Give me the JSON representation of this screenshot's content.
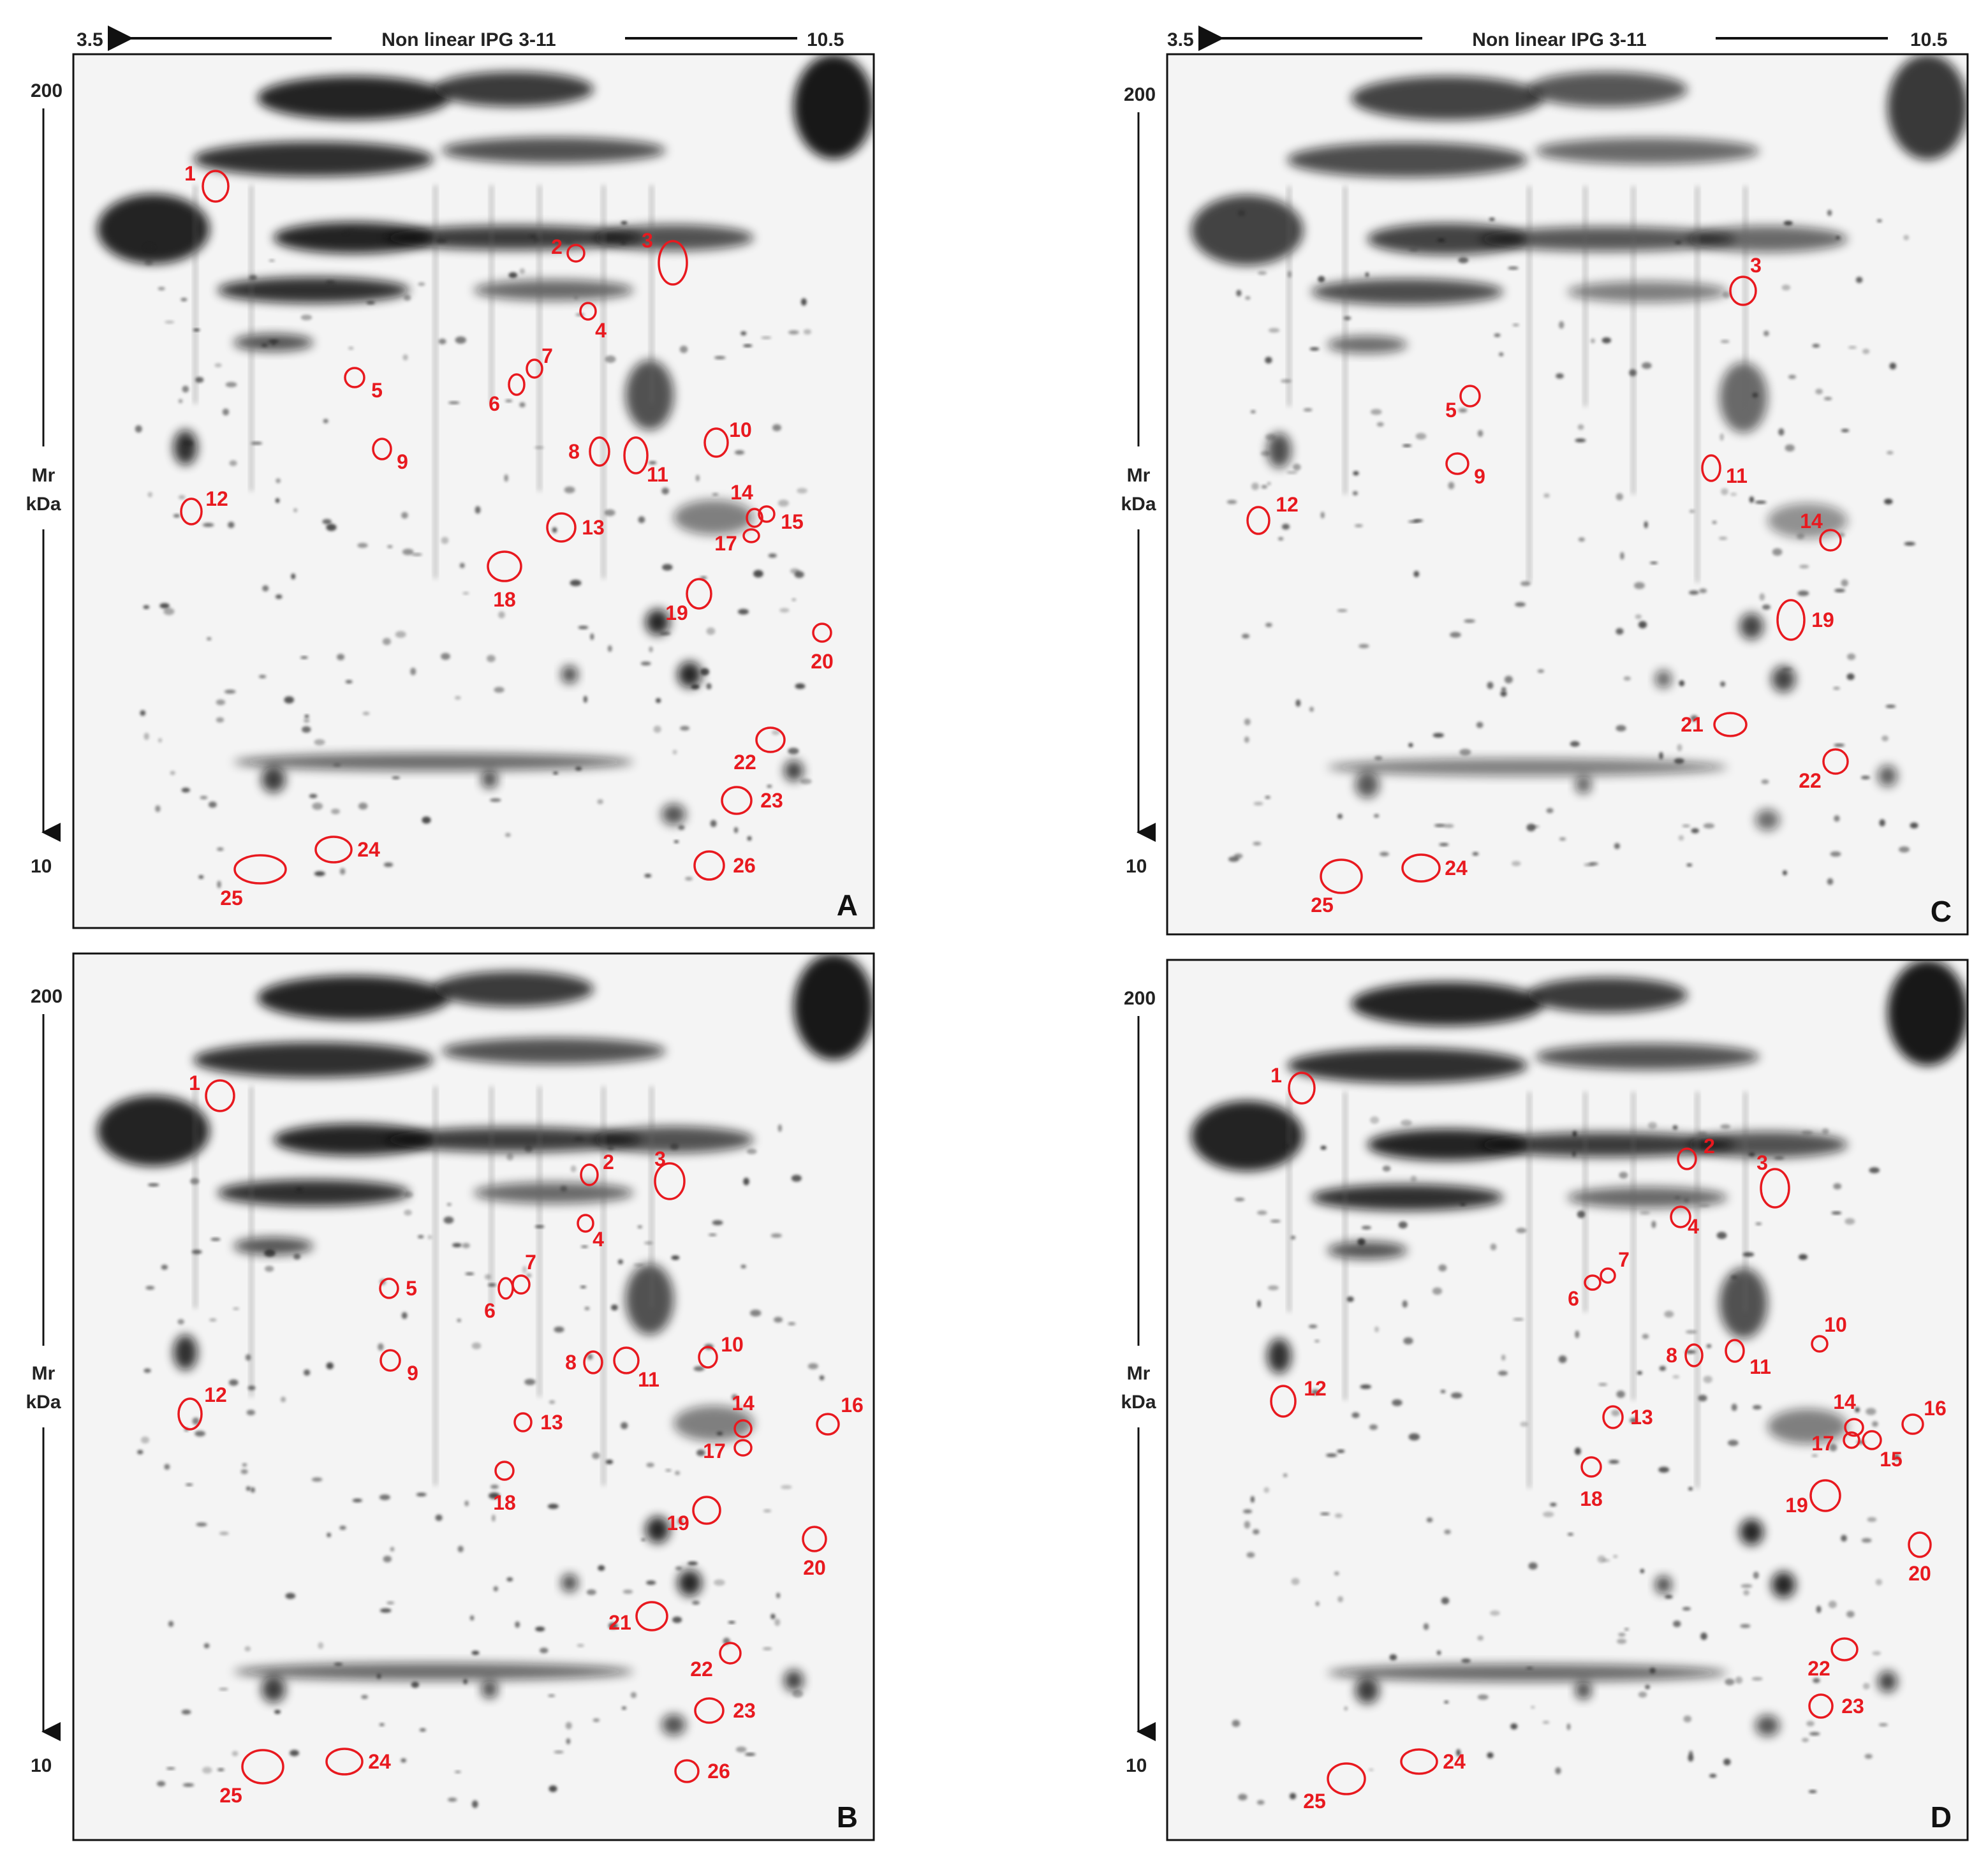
{
  "axes": {
    "ph_low": "3.5",
    "ph_high": "10.5",
    "gradient_label": "Non linear IPG 3-11",
    "mw_top": "200",
    "mw_bottom": "10",
    "mw_label_line1": "Mr",
    "mw_label_line2": "kDa"
  },
  "colors": {
    "spot_marker": "#e8191f",
    "frame": "#111111",
    "gel_dark": "#111111"
  },
  "panels": [
    {
      "id": "A",
      "spots": [
        {
          "n": "1"
        },
        {
          "n": "2"
        },
        {
          "n": "3"
        },
        {
          "n": "4"
        },
        {
          "n": "5"
        },
        {
          "n": "6"
        },
        {
          "n": "7"
        },
        {
          "n": "8"
        },
        {
          "n": "9"
        },
        {
          "n": "10"
        },
        {
          "n": "11"
        },
        {
          "n": "12"
        },
        {
          "n": "13"
        },
        {
          "n": "14"
        },
        {
          "n": "15"
        },
        {
          "n": "17"
        },
        {
          "n": "18"
        },
        {
          "n": "19"
        },
        {
          "n": "20"
        },
        {
          "n": "22"
        },
        {
          "n": "23"
        },
        {
          "n": "24"
        },
        {
          "n": "25"
        },
        {
          "n": "26"
        }
      ]
    },
    {
      "id": "B",
      "spots": [
        {
          "n": "1"
        },
        {
          "n": "2"
        },
        {
          "n": "3"
        },
        {
          "n": "4"
        },
        {
          "n": "5"
        },
        {
          "n": "6"
        },
        {
          "n": "7"
        },
        {
          "n": "8"
        },
        {
          "n": "9"
        },
        {
          "n": "10"
        },
        {
          "n": "11"
        },
        {
          "n": "12"
        },
        {
          "n": "13"
        },
        {
          "n": "14"
        },
        {
          "n": "16"
        },
        {
          "n": "17"
        },
        {
          "n": "18"
        },
        {
          "n": "19"
        },
        {
          "n": "20"
        },
        {
          "n": "21"
        },
        {
          "n": "22"
        },
        {
          "n": "23"
        },
        {
          "n": "24"
        },
        {
          "n": "25"
        },
        {
          "n": "26"
        }
      ]
    },
    {
      "id": "C",
      "spots": [
        {
          "n": "3"
        },
        {
          "n": "5"
        },
        {
          "n": "9"
        },
        {
          "n": "11"
        },
        {
          "n": "12"
        },
        {
          "n": "14"
        },
        {
          "n": "19"
        },
        {
          "n": "21"
        },
        {
          "n": "22"
        },
        {
          "n": "24"
        },
        {
          "n": "25"
        }
      ]
    },
    {
      "id": "D",
      "spots": [
        {
          "n": "1"
        },
        {
          "n": "2"
        },
        {
          "n": "3"
        },
        {
          "n": "4"
        },
        {
          "n": "6"
        },
        {
          "n": "7"
        },
        {
          "n": "8"
        },
        {
          "n": "10"
        },
        {
          "n": "11"
        },
        {
          "n": "12"
        },
        {
          "n": "13"
        },
        {
          "n": "14"
        },
        {
          "n": "15"
        },
        {
          "n": "16"
        },
        {
          "n": "17"
        },
        {
          "n": "18"
        },
        {
          "n": "19"
        },
        {
          "n": "20"
        },
        {
          "n": "22"
        },
        {
          "n": "23"
        },
        {
          "n": "24"
        },
        {
          "n": "25"
        }
      ]
    }
  ]
}
